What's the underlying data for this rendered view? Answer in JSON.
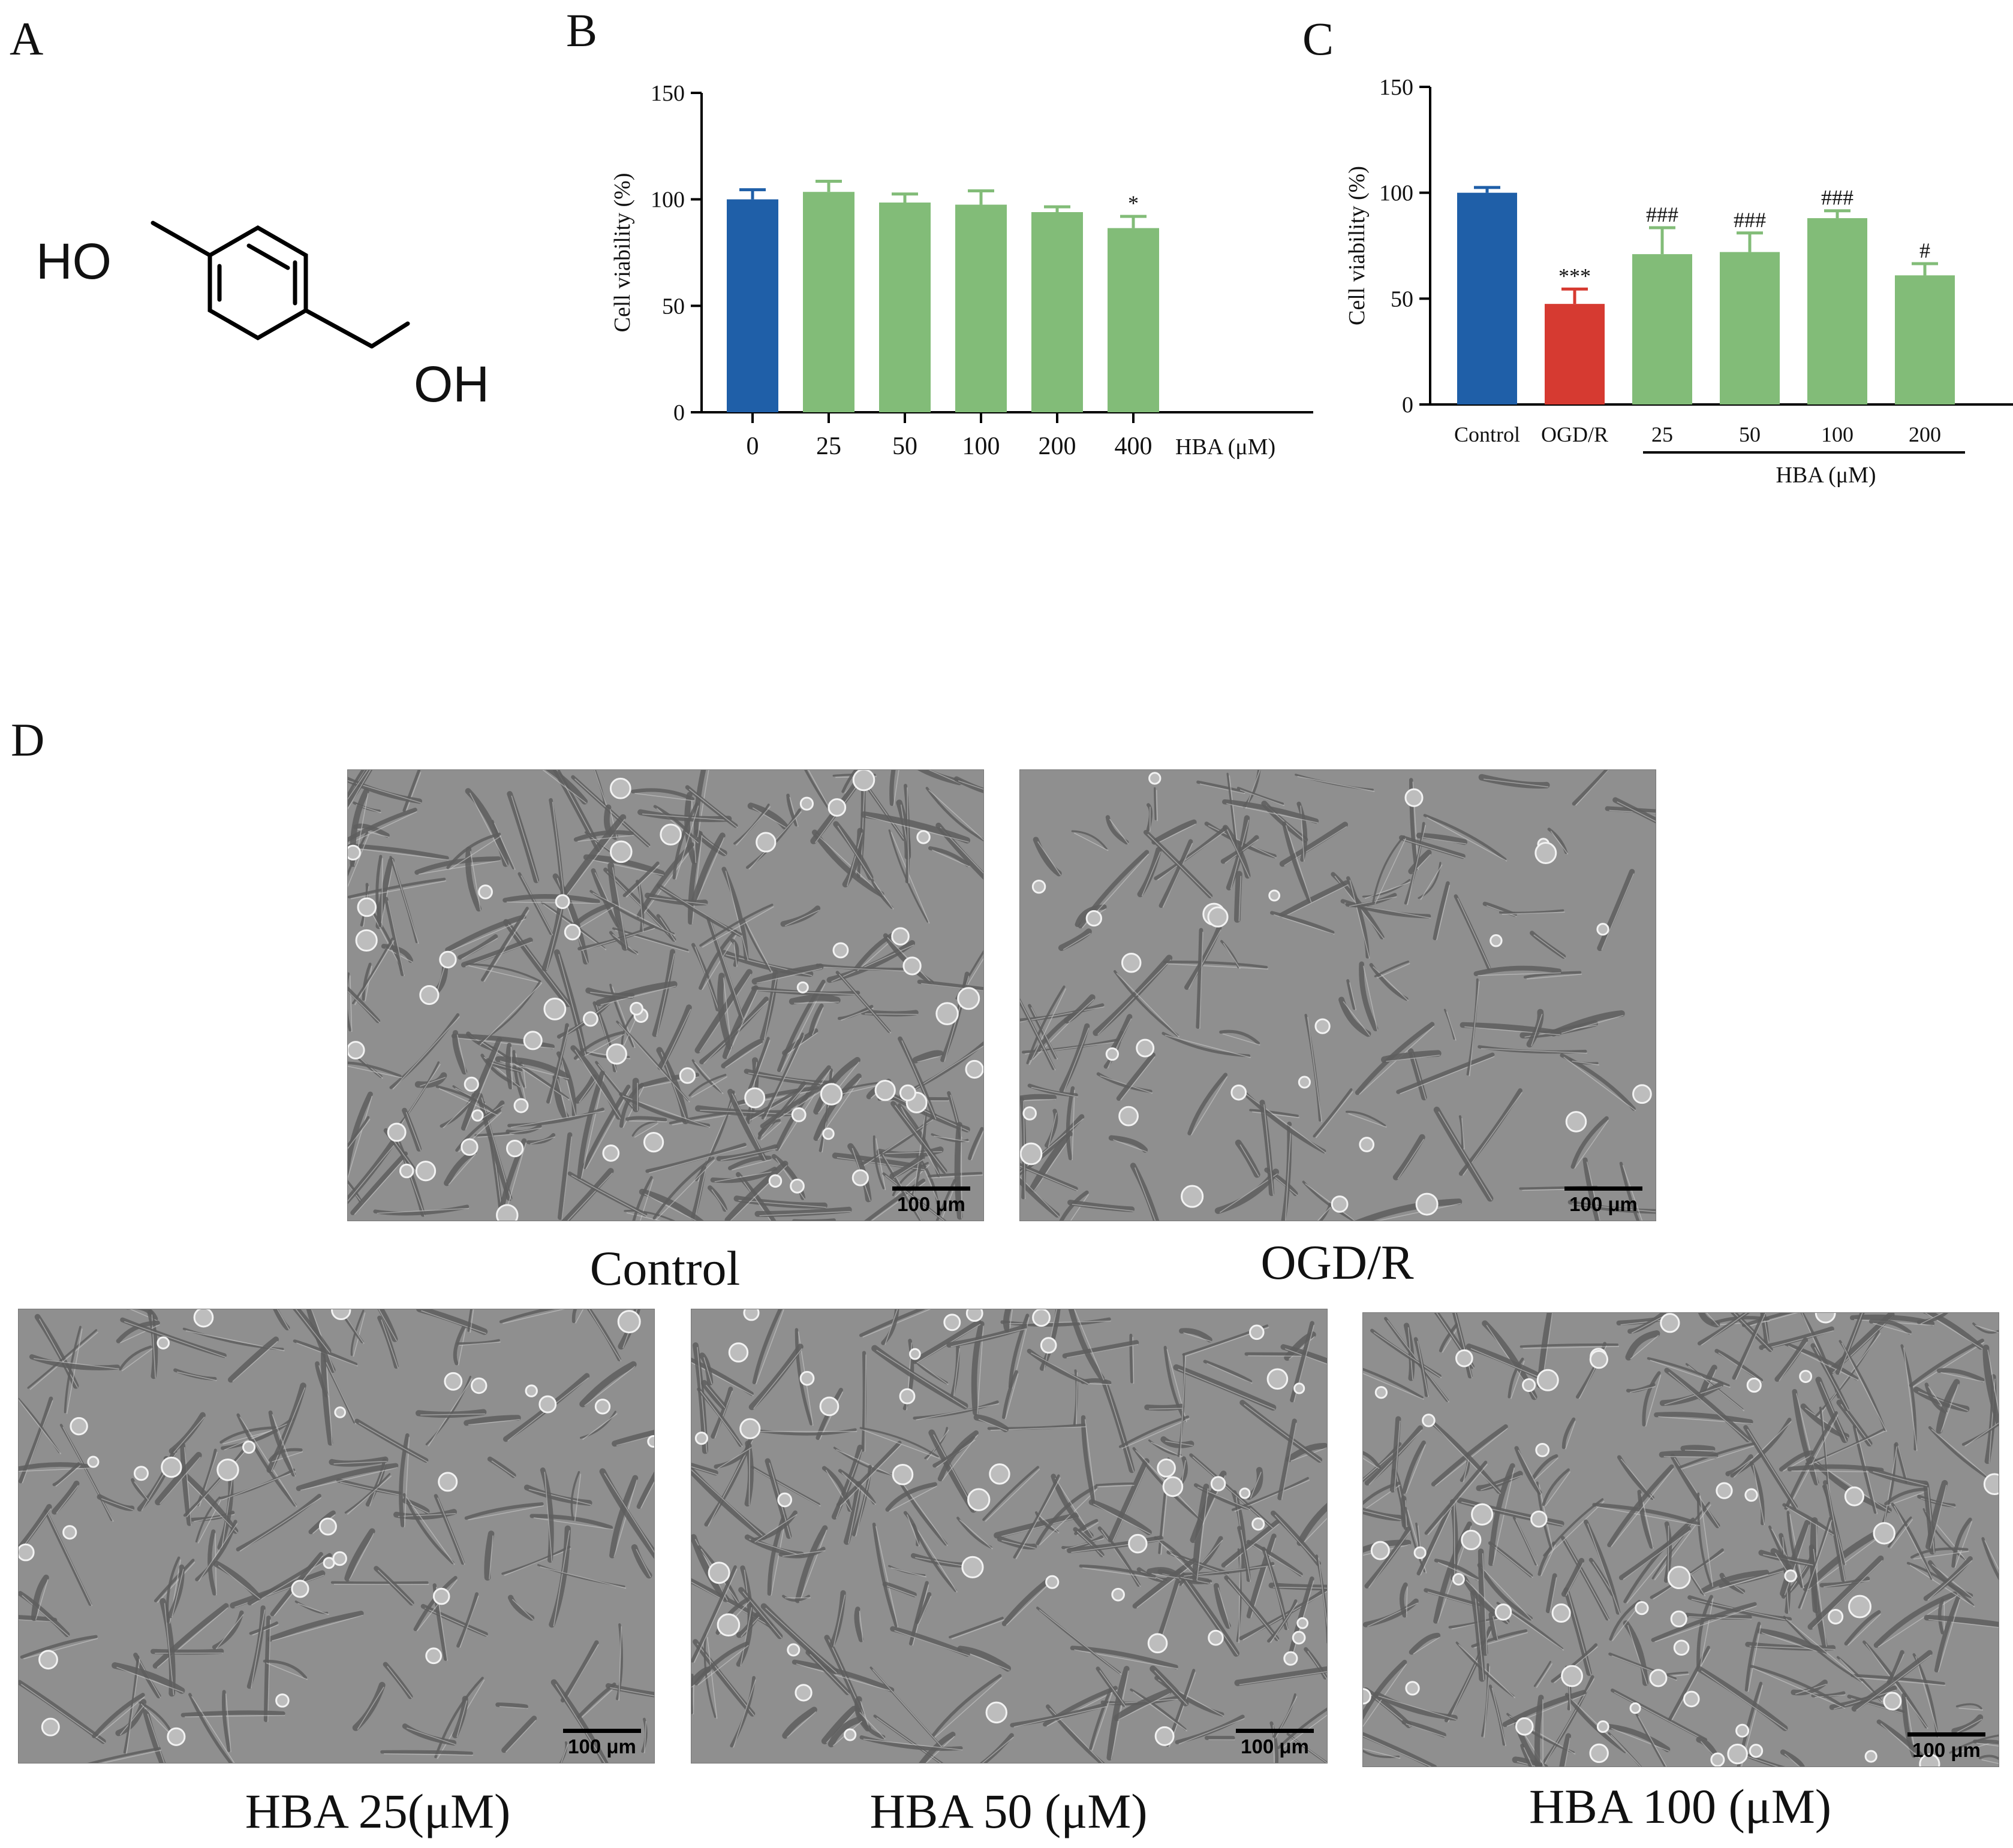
{
  "panels": {
    "a": "A",
    "b": "B",
    "c": "C",
    "d": "D"
  },
  "molecule": {
    "label_ho": "HO",
    "label_oh": "OH"
  },
  "chart_data": [
    {
      "id": "B",
      "type": "bar",
      "categories": [
        "0",
        "25",
        "50",
        "100",
        "200",
        "400"
      ],
      "values": [
        100,
        103.5,
        98.5,
        97.5,
        94,
        86.5
      ],
      "errors": [
        4.5,
        5,
        4,
        6.5,
        2.5,
        5.5
      ],
      "colors": [
        "#1f5fa8",
        "#82bc78",
        "#82bc78",
        "#82bc78",
        "#82bc78",
        "#82bc78"
      ],
      "significance": [
        "",
        "",
        "",
        "",
        "",
        "*"
      ],
      "ylabel": "Cell viability (%)",
      "xlabel": "HBA (μM)",
      "ylim": [
        0,
        150
      ],
      "yticks": [
        "0",
        "50",
        "100",
        "150"
      ]
    },
    {
      "id": "C",
      "type": "bar",
      "categories": [
        "Control",
        "OGD/R",
        "25",
        "50",
        "100",
        "200"
      ],
      "values": [
        100,
        47.5,
        71,
        72,
        88,
        61
      ],
      "errors": [
        2.5,
        7,
        12.5,
        9,
        3.5,
        5.5
      ],
      "colors": [
        "#1f5fa8",
        "#d63a31",
        "#82bc78",
        "#82bc78",
        "#82bc78",
        "#82bc78"
      ],
      "significance": [
        "",
        "***",
        "###",
        "###",
        "###",
        "#"
      ],
      "ylabel": "Cell viability (%)",
      "group_label": "HBA (μM)",
      "ylim": [
        0,
        150
      ],
      "yticks": [
        "0",
        "50",
        "100",
        "150"
      ]
    }
  ],
  "micrographs": [
    {
      "caption": "Control",
      "scale": "100 μm"
    },
    {
      "caption": "OGD/R",
      "scale": "100 μm"
    },
    {
      "caption": "HBA 25(μM)",
      "scale": "100 μm"
    },
    {
      "caption": "HBA 50 (μM)",
      "scale": "100 μm"
    },
    {
      "caption": "HBA 100 (μM)",
      "scale": "100 μm"
    }
  ]
}
